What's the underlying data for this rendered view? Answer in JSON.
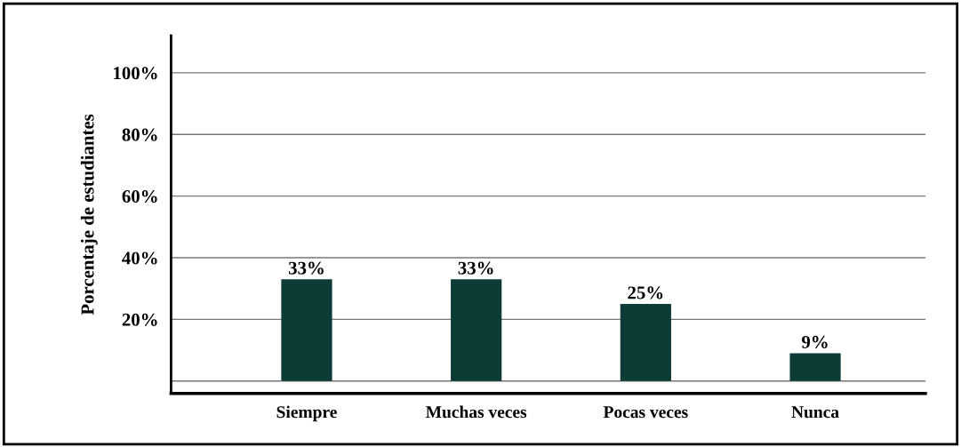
{
  "chart_data": {
    "type": "bar",
    "ylabel": "Porcentaje de estudiantes",
    "categories": [
      "Siempre",
      "Muchas veces",
      "Pocas veces",
      "Nunca"
    ],
    "values": [
      33,
      33,
      25,
      9
    ],
    "color": "#0d3b36",
    "data_labels": true,
    "value_labels": [
      "33%",
      "33%",
      "25%",
      "9%"
    ],
    "ylim": [
      -4,
      112
    ],
    "yticks": [
      {
        "value": 0,
        "label": null
      },
      {
        "value": 20,
        "label": "20%"
      },
      {
        "value": 40,
        "label": "40%"
      },
      {
        "value": 60,
        "label": "60%"
      },
      {
        "value": 80,
        "label": "80%"
      },
      {
        "value": 100,
        "label": "100%"
      }
    ],
    "grid": "y",
    "legend": false
  }
}
